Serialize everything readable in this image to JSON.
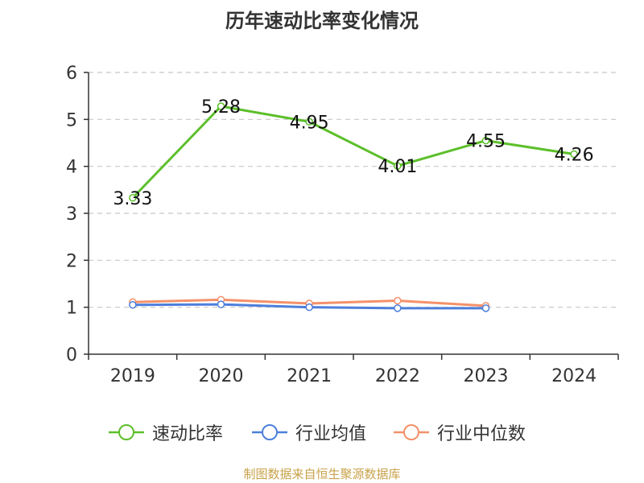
{
  "title": "历年速动比率变化情况",
  "footer": "制图数据来自恒生聚源数据库",
  "chart_data": {
    "type": "line",
    "title": "历年速动比率变化情况",
    "categories": [
      "2019",
      "2020",
      "2021",
      "2022",
      "2023",
      "2024"
    ],
    "ylim": [
      0,
      6
    ],
    "yticks": [
      0,
      1,
      2,
      3,
      4,
      5,
      6
    ],
    "grid": true,
    "legend_position": "bottom",
    "series": [
      {
        "name": "速动比率",
        "color": "#5cbf2a",
        "values": [
          3.33,
          5.28,
          4.95,
          4.01,
          4.55,
          4.26
        ],
        "show_labels": true
      },
      {
        "name": "行业均值",
        "color": "#4d7fdb",
        "values": [
          1.05,
          1.06,
          1.0,
          0.98,
          0.98,
          null
        ],
        "show_labels": false
      },
      {
        "name": "行业中位数",
        "color": "#f4916a",
        "values": [
          1.11,
          1.16,
          1.08,
          1.14,
          1.03,
          null
        ],
        "show_labels": false
      }
    ]
  }
}
